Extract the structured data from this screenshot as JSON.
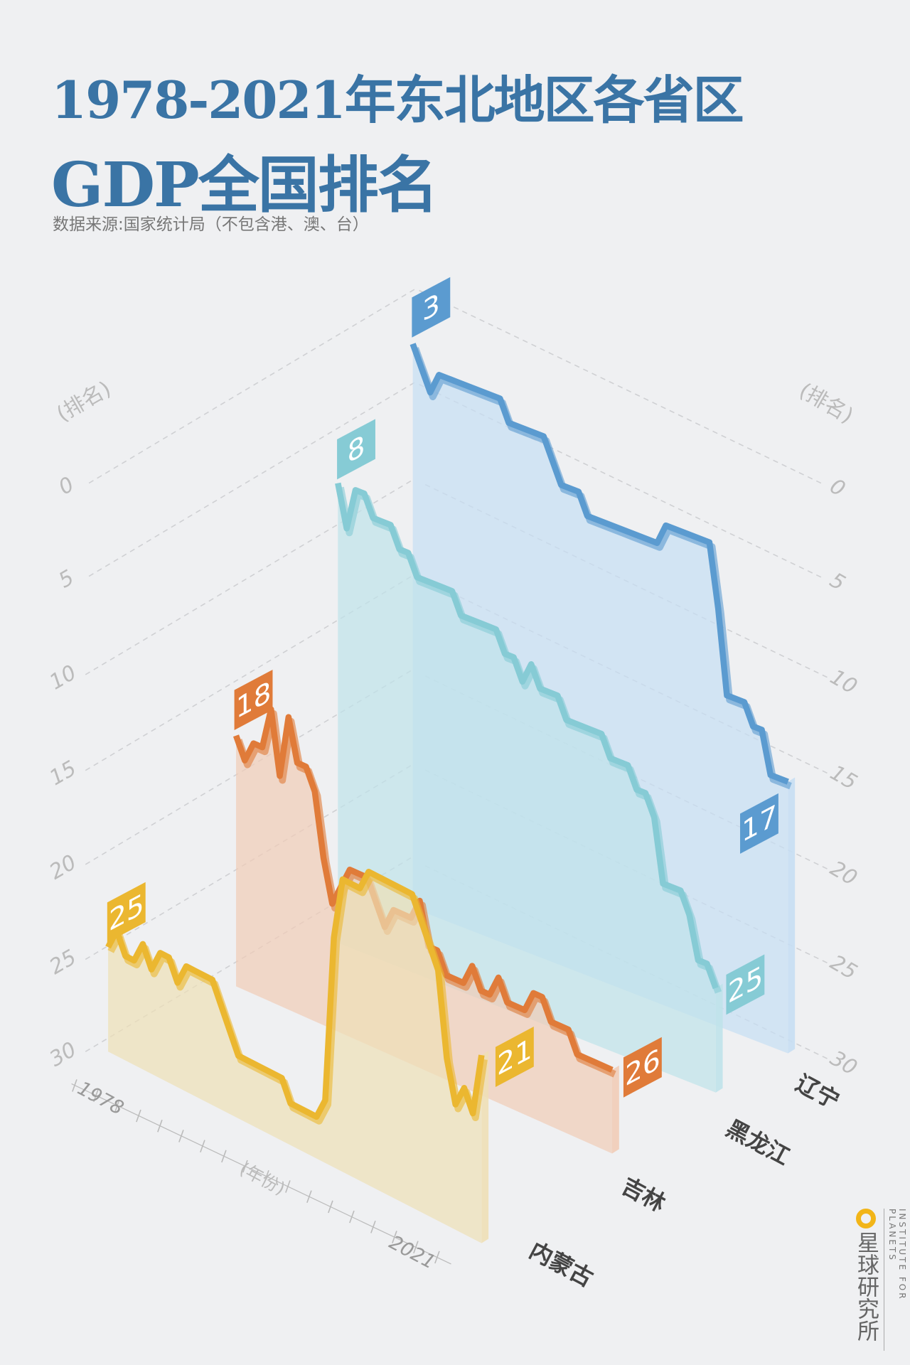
{
  "title": {
    "line1": "1978-2021年东北地区各省区",
    "line2": "GDP全国排名"
  },
  "subtitle": "数据来源:国家统计局（不包含港、澳、台）",
  "brand": {
    "cn": "星球研究所",
    "en": "INSTITUTE FOR PLANETS",
    "accent": "#f2b518"
  },
  "chart_data": {
    "type": "line",
    "style": "isometric 3D ribbon area chart",
    "ylabel": "(排名)",
    "xlabel": "(年份)",
    "ylim": [
      0,
      30
    ],
    "y_reversed": true,
    "y_ticks": [
      "0",
      "5",
      "10",
      "15",
      "20",
      "25",
      "30"
    ],
    "x_range": [
      1978,
      2021
    ],
    "x_tick_labels": [
      "1978",
      "2021"
    ],
    "grid": true,
    "series": [
      {
        "name": "辽宁",
        "color": "#5b9bd0",
        "fill": "#c6def3",
        "values": [
          3,
          4,
          5,
          4,
          4,
          4,
          4,
          4,
          4,
          4,
          4,
          5,
          5,
          5,
          5,
          5,
          6,
          7,
          7,
          7,
          8,
          8,
          8,
          8,
          8,
          8,
          8,
          8,
          8,
          7,
          7,
          7,
          7,
          7,
          7,
          10,
          14,
          14,
          14,
          15,
          15,
          17,
          17,
          17
        ],
        "start_label": "3",
        "end_label": "17"
      },
      {
        "name": "黑龙江",
        "color": "#86cbd5",
        "fill": "#bfe2ea",
        "values": [
          8,
          10,
          8,
          8,
          9,
          9,
          9,
          10,
          10,
          11,
          11,
          11,
          11,
          11,
          12,
          12,
          12,
          12,
          12,
          13,
          13,
          14,
          13,
          14,
          14,
          14,
          15,
          15,
          15,
          15,
          15,
          16,
          16,
          16,
          17,
          17,
          18,
          21,
          21,
          21,
          22,
          24,
          24,
          25
        ],
        "start_label": "8",
        "end_label": "25"
      },
      {
        "name": "吉林",
        "color": "#e07b39",
        "fill": "#f1ccb7",
        "values": [
          18,
          19,
          18,
          18,
          16,
          19,
          16,
          18,
          18,
          19,
          22,
          24,
          23,
          22,
          22,
          22,
          23,
          24,
          23,
          23,
          23,
          22,
          24,
          24,
          25,
          25,
          25,
          24,
          25,
          25,
          24,
          25,
          25,
          25,
          24,
          24,
          25,
          25,
          25,
          26,
          26,
          26,
          26,
          26
        ],
        "start_label": "18",
        "end_label": "26"
      },
      {
        "name": "内蒙古",
        "color": "#ebb730",
        "fill": "#eedfb6",
        "values": [
          25,
          24,
          25,
          25,
          24,
          25,
          24,
          24,
          25,
          24,
          24,
          24,
          24,
          25,
          26,
          27,
          27,
          27,
          27,
          27,
          27,
          28,
          28,
          28,
          28,
          27,
          19,
          16,
          16,
          16,
          15,
          15,
          15,
          15,
          15,
          15,
          16,
          17,
          18,
          22,
          24,
          23,
          24,
          21
        ],
        "start_label": "25",
        "end_label": "21"
      }
    ]
  }
}
